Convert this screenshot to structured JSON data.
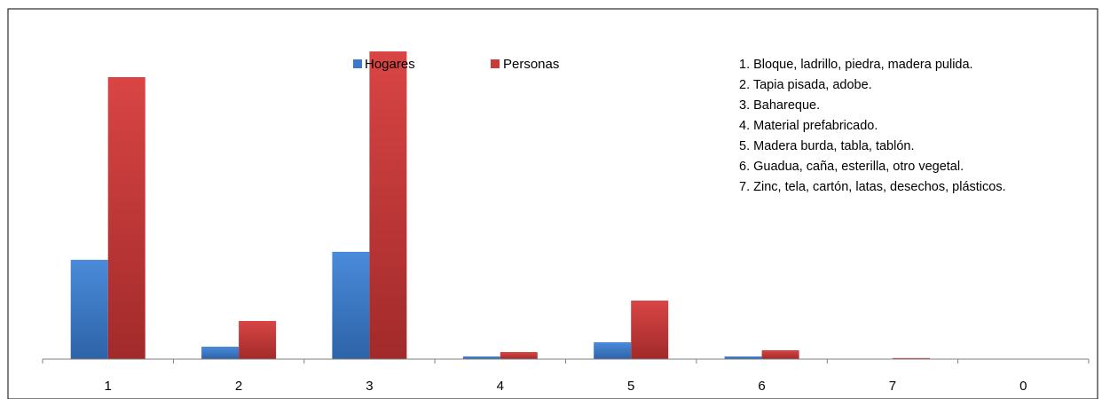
{
  "chart_data": {
    "type": "bar",
    "title": "",
    "xlabel": "",
    "ylabel": "",
    "categories": [
      "1",
      "2",
      "3",
      "4",
      "5",
      "6",
      "7",
      "0"
    ],
    "series": [
      {
        "name": "Hogares",
        "color": "#3B78C9",
        "values": [
          112,
          14,
          121,
          3,
          19,
          3,
          0.3,
          0
        ]
      },
      {
        "name": "Personas",
        "color": "#C93A3A",
        "values": [
          318,
          43,
          347,
          8,
          66,
          10,
          1.2,
          0
        ]
      }
    ],
    "ylim": [
      0,
      350
    ],
    "grid": false,
    "legend_position": "top-center",
    "annotations": [
      "1. Bloque, ladrillo, piedra, madera pulida.",
      "2. Tapia pisada, adobe.",
      "3. Bahareque.",
      "4. Material prefabricado.",
      "5. Madera burda, tabla, tablón.",
      "6. Guadua, caña, esterilla, otro vegetal.",
      "7. Zinc, tela, cartón, latas, desechos, plásticos."
    ]
  }
}
